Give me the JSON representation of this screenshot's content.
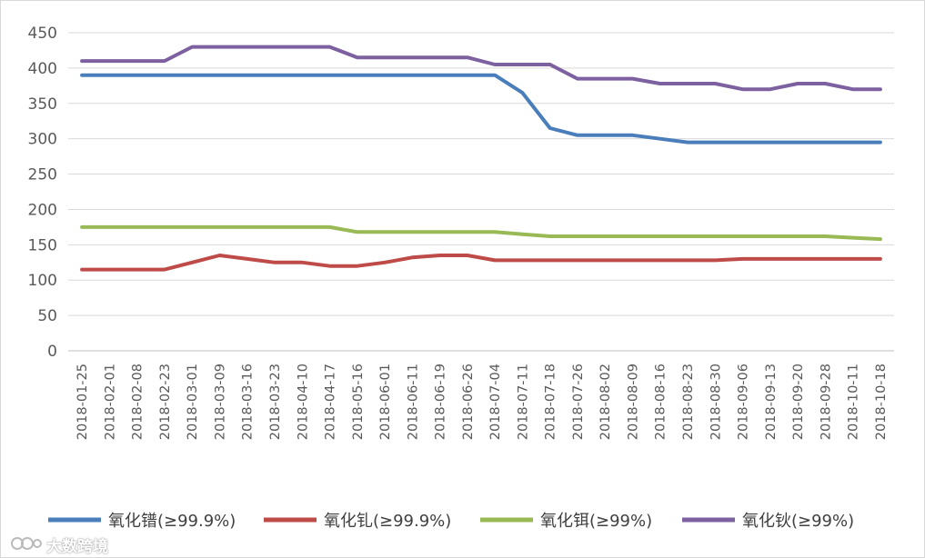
{
  "chart_data": {
    "type": "line",
    "title": "",
    "xlabel": "",
    "ylabel": "",
    "ylim": [
      0,
      450
    ],
    "yticks": [
      0,
      50,
      100,
      150,
      200,
      250,
      300,
      350,
      400,
      450
    ],
    "grid": "horizontal",
    "legend_position": "bottom",
    "x": [
      "2018-01-25",
      "2018-02-01",
      "2018-02-08",
      "2018-02-23",
      "2018-03-01",
      "2018-03-09",
      "2018-03-16",
      "2018-03-23",
      "2018-04-10",
      "2018-04-17",
      "2018-05-16",
      "2018-06-01",
      "2018-06-11",
      "2018-06-19",
      "2018-06-26",
      "2018-07-04",
      "2018-07-11",
      "2018-07-18",
      "2018-07-26",
      "2018-08-02",
      "2018-08-09",
      "2018-08-16",
      "2018-08-23",
      "2018-08-30",
      "2018-09-06",
      "2018-09-13",
      "2018-09-20",
      "2018-09-28",
      "2018-10-11",
      "2018-10-18"
    ],
    "series": [
      {
        "name": "氧化镨(≥99.9%)",
        "color": "#4a7ebb",
        "values": [
          390,
          390,
          390,
          390,
          390,
          390,
          390,
          390,
          390,
          390,
          390,
          390,
          390,
          390,
          390,
          390,
          365,
          315,
          305,
          305,
          305,
          300,
          295,
          295,
          295,
          295,
          295,
          295,
          295,
          295
        ]
      },
      {
        "name": "氧化钆(≥99.9%)",
        "color": "#be4b48",
        "values": [
          115,
          115,
          115,
          115,
          125,
          135,
          130,
          125,
          125,
          120,
          120,
          125,
          132,
          135,
          135,
          128,
          128,
          128,
          128,
          128,
          128,
          128,
          128,
          128,
          130,
          130,
          130,
          130,
          130,
          130
        ]
      },
      {
        "name": "氧化铒(≥99%)",
        "color": "#98b954",
        "values": [
          175,
          175,
          175,
          175,
          175,
          175,
          175,
          175,
          175,
          175,
          168,
          168,
          168,
          168,
          168,
          168,
          165,
          162,
          162,
          162,
          162,
          162,
          162,
          162,
          162,
          162,
          162,
          162,
          160,
          158
        ]
      },
      {
        "name": "氧化钬(≥99%)",
        "color": "#7d60a0",
        "values": [
          410,
          410,
          410,
          410,
          430,
          430,
          430,
          430,
          430,
          430,
          415,
          415,
          415,
          415,
          415,
          405,
          405,
          405,
          385,
          385,
          385,
          378,
          378,
          378,
          370,
          370,
          378,
          378,
          370,
          370
        ]
      }
    ]
  },
  "watermark": {
    "text": "大数跨境"
  }
}
